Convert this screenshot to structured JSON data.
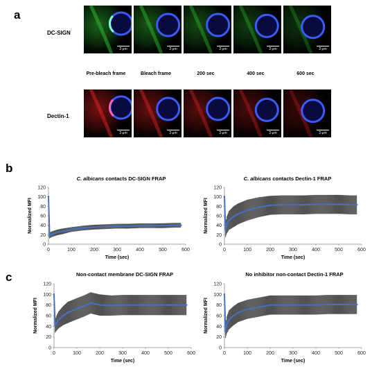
{
  "panel_a": {
    "letter": "a",
    "rows": [
      {
        "label": "DC-SIGN",
        "signal_color": "#2fb52f",
        "count": 5
      },
      {
        "label": "Dectin-1",
        "signal_color": "#d42020",
        "count": 5
      }
    ],
    "frame_labels": [
      "Pre-bleach frame",
      "Bleach frame",
      "200 sec",
      "400 sec",
      "600 sec"
    ],
    "scale_bar": "2 μm"
  },
  "panel_b": {
    "letter": "b"
  },
  "panel_c": {
    "letter": "c"
  },
  "chart_titles": {
    "b1": {
      "italic": "C. albicans",
      "rest": " contacts DC-SIGN FRAP"
    },
    "b2": {
      "italic": "C. albicans",
      "rest": " contacts Dectin-1 FRAP"
    },
    "c1": {
      "italic": "",
      "rest": "Non-contact membrane DC-SIGN FRAP"
    },
    "c2": {
      "italic": "",
      "rest": "No inhibitor non-contact Dectin-1 FRAP"
    }
  },
  "chart_data": [
    {
      "type": "line",
      "id": "b1",
      "title": "C. albicans contacts DC-SIGN FRAP",
      "xlabel": "Time (sec)",
      "ylabel": "Normalized MFI",
      "xlim": [
        0,
        600
      ],
      "ylim": [
        0,
        120
      ],
      "xticks": [
        0,
        100,
        200,
        300,
        400,
        500,
        600
      ],
      "yticks": [
        0,
        20,
        40,
        60,
        80,
        100,
        120
      ],
      "series": [
        {
          "x": [
            0,
            5,
            10,
            20,
            40,
            60,
            100,
            150,
            200,
            250,
            300,
            350,
            400,
            450,
            500,
            550,
            580
          ],
          "y": [
            100,
            18,
            20,
            22,
            25,
            27,
            31,
            34,
            36,
            37,
            38,
            38,
            39,
            39,
            39,
            40,
            40
          ],
          "err": [
            2,
            6,
            6,
            6,
            6,
            6,
            5,
            5,
            5,
            5,
            5,
            5,
            5,
            5,
            5,
            5,
            5
          ]
        }
      ],
      "line_color": "#4472c4",
      "error_color": "#404040"
    },
    {
      "type": "line",
      "id": "b2",
      "title": "C. albicans contacts Dectin-1 FRAP",
      "xlabel": "Time (sec)",
      "ylabel": "Normalized MFI",
      "xlim": [
        0,
        600
      ],
      "ylim": [
        0,
        120
      ],
      "xticks": [
        0,
        100,
        200,
        300,
        400,
        500,
        600
      ],
      "yticks": [
        0,
        20,
        40,
        60,
        80,
        100,
        120
      ],
      "series": [
        {
          "x": [
            0,
            5,
            10,
            20,
            40,
            60,
            100,
            150,
            200,
            250,
            300,
            350,
            400,
            450,
            500,
            550,
            580
          ],
          "y": [
            100,
            30,
            40,
            50,
            58,
            64,
            72,
            78,
            82,
            83,
            83,
            83,
            84,
            84,
            84,
            83,
            83
          ],
          "err": [
            2,
            15,
            18,
            20,
            22,
            22,
            22,
            21,
            20,
            20,
            20,
            20,
            20,
            20,
            20,
            20,
            20
          ]
        }
      ],
      "line_color": "#4472c4",
      "error_color": "#404040"
    },
    {
      "type": "line",
      "id": "c1",
      "title": "Non-contact membrane DC-SIGN FRAP",
      "xlabel": "Time (sec)",
      "ylabel": "Normalized MFI",
      "xlim": [
        0,
        600
      ],
      "ylim": [
        0,
        120
      ],
      "xticks": [
        0,
        100,
        200,
        300,
        400,
        500,
        600
      ],
      "yticks": [
        0,
        20,
        40,
        60,
        80,
        100,
        120
      ],
      "series": [
        {
          "x": [
            0,
            5,
            10,
            20,
            40,
            60,
            100,
            130,
            160,
            200,
            250,
            300,
            350,
            400,
            450,
            500,
            550,
            580
          ],
          "y": [
            100,
            40,
            45,
            52,
            60,
            66,
            73,
            78,
            84,
            80,
            79,
            80,
            80,
            80,
            80,
            80,
            80,
            80
          ],
          "err": [
            2,
            12,
            14,
            16,
            18,
            20,
            20,
            20,
            20,
            20,
            19,
            19,
            19,
            19,
            19,
            19,
            19,
            19
          ]
        }
      ],
      "line_color": "#4472c4",
      "error_color": "#404040"
    },
    {
      "type": "line",
      "id": "c2",
      "title": "No inhibitor non-contact Dectin-1 FRAP",
      "xlabel": "Time (sec)",
      "ylabel": "Normalized MFI",
      "xlim": [
        0,
        600
      ],
      "ylim": [
        0,
        120
      ],
      "xticks": [
        0,
        100,
        200,
        300,
        400,
        500,
        600
      ],
      "yticks": [
        0,
        20,
        40,
        60,
        80,
        100,
        120
      ],
      "series": [
        {
          "x": [
            0,
            5,
            10,
            20,
            40,
            60,
            100,
            150,
            200,
            250,
            300,
            350,
            400,
            450,
            500,
            550,
            580
          ],
          "y": [
            100,
            30,
            42,
            52,
            60,
            66,
            72,
            76,
            80,
            80,
            80,
            80,
            80,
            81,
            81,
            81,
            81
          ],
          "err": [
            2,
            12,
            16,
            18,
            18,
            18,
            18,
            18,
            18,
            18,
            18,
            18,
            18,
            18,
            18,
            18,
            18
          ]
        }
      ],
      "line_color": "#4472c4",
      "error_color": "#404040"
    }
  ]
}
